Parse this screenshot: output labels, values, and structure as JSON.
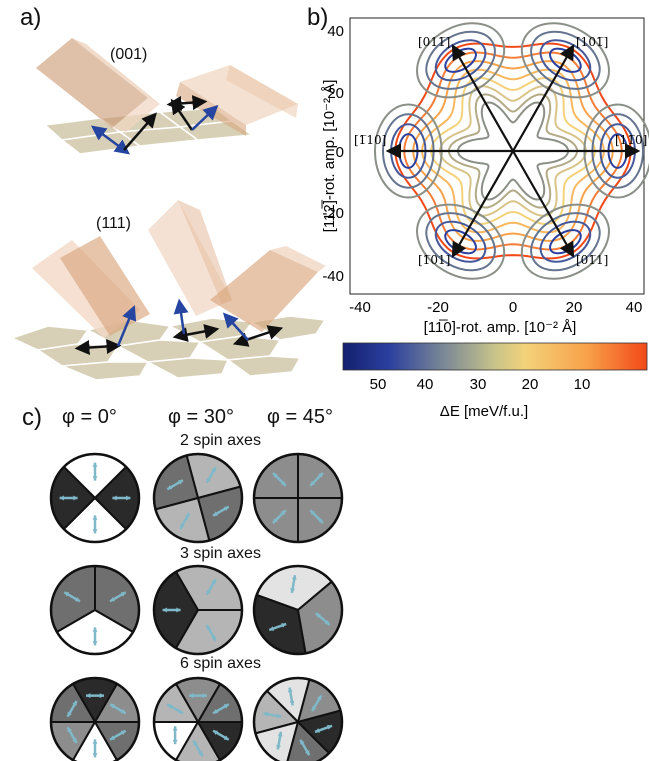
{
  "panel_a": {
    "label": "a)",
    "caption_001": "(001)",
    "caption_111": "(111)"
  },
  "panel_b": {
    "label": "b)",
    "xlabel": "[11̅0]-rot. amp.   [10⁻² Å]",
    "ylabel": "[112̅]-rot. amp.   [10⁻² Å]",
    "colorbar_label": "ΔE   [meV/f.u.]",
    "x_ticks": [
      "-40",
      "-20",
      "0",
      "20",
      "40"
    ],
    "y_ticks": [
      "40",
      "20",
      "0",
      "-20",
      "-40"
    ],
    "colorbar_ticks": [
      "50",
      "40",
      "30",
      "20",
      "10"
    ],
    "directions": {
      "top_left": "[011̅]",
      "top_right": "[101̅]",
      "left": "[1̅10]",
      "right": "[11̅0]",
      "bottom_left": "[1̅01]",
      "bottom_right": "[01̅1]"
    }
  },
  "panel_c": {
    "label": "c)",
    "phi_headers": [
      "φ = 0°",
      "φ = 30°",
      "φ = 45°"
    ],
    "rows": [
      "2 spin axes",
      "3 spin axes",
      "6 spin axes"
    ]
  },
  "chart_data": {
    "type": "contour",
    "title": "",
    "xlabel": "[11̅0]-rot. amp.   [10⁻² Å]",
    "ylabel": "[112̅]-rot. amp.   [10⁻² Å]",
    "xlim": [
      -45,
      42
    ],
    "ylim": [
      -45,
      42
    ],
    "colorbar": {
      "label": "ΔE   [meV/f.u.]",
      "range": [
        0,
        58
      ],
      "ticks": [
        50,
        40,
        30,
        20,
        10
      ]
    },
    "symmetry": "six-fold",
    "energy_minima_radius": 34,
    "minima_angles_deg": [
      0,
      60,
      120,
      180,
      240,
      300
    ]
  },
  "colors": {
    "arrow_black": "#111111",
    "arrow_blue": "#2545a0",
    "domain_arrow": "#7fb9c9",
    "tile": "#d8d0b6",
    "box": "#d9a67e"
  }
}
